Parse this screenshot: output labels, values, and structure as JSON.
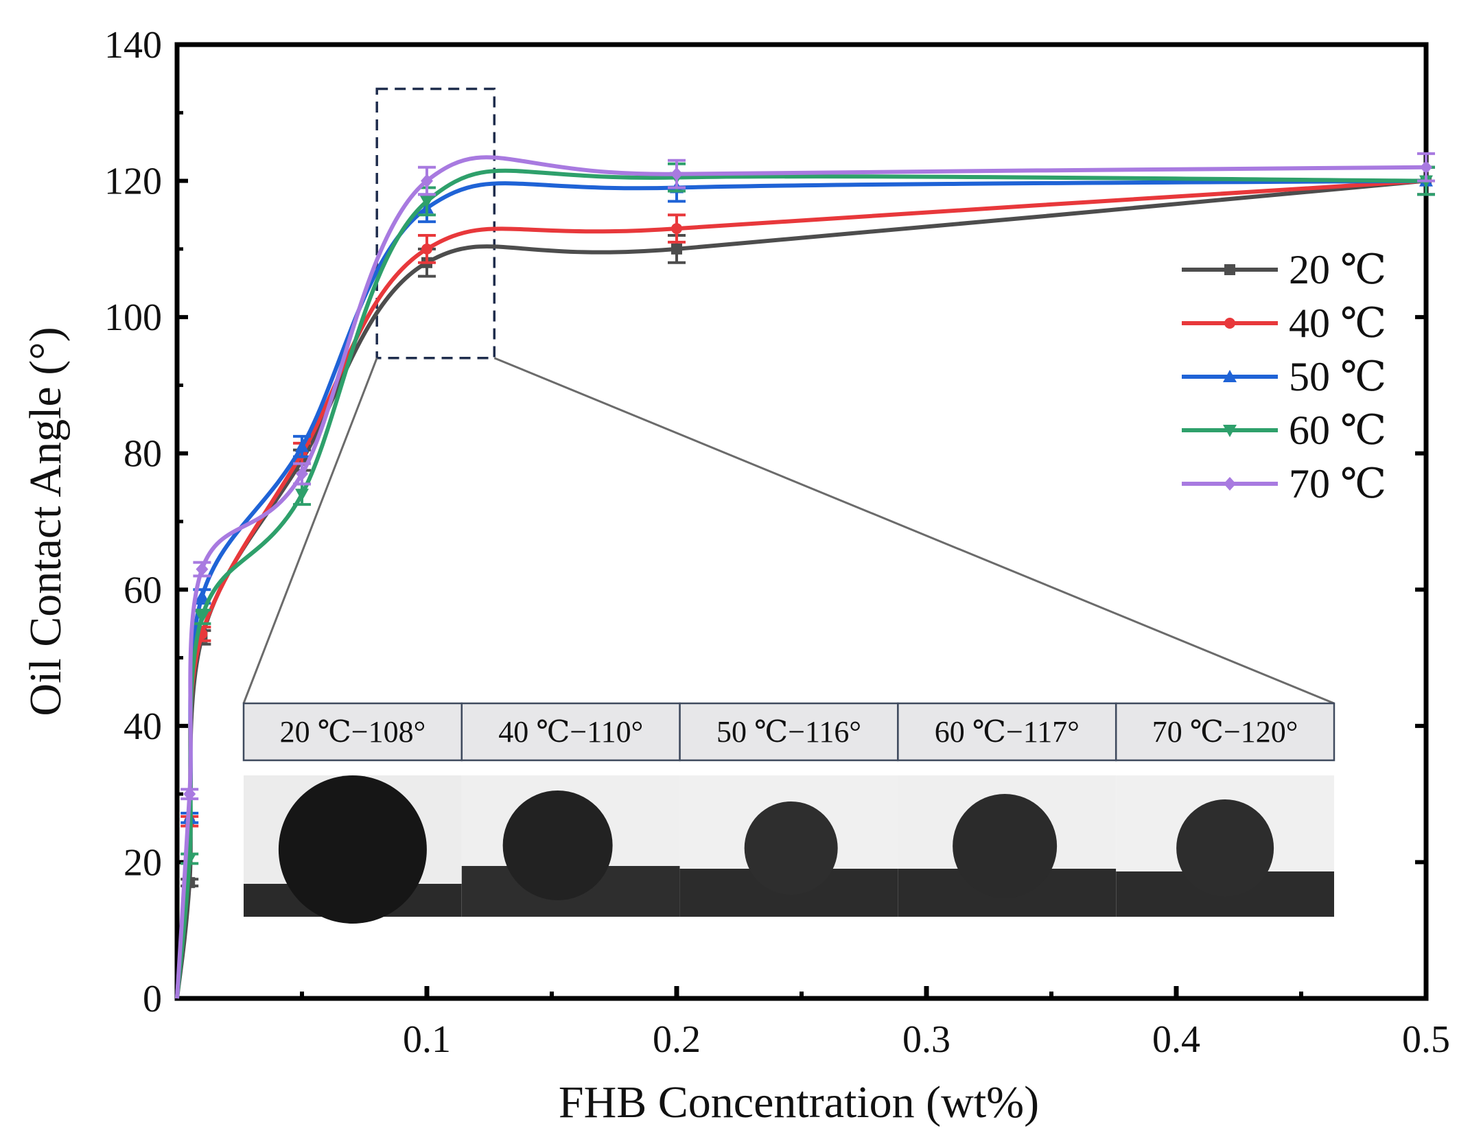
{
  "chart_data": {
    "type": "line",
    "title": "",
    "xlabel": "FHB Concentration (wt%)",
    "ylabel": "Oil Contact Angle (°)",
    "xlim": [
      0,
      0.5
    ],
    "ylim": [
      0,
      140
    ],
    "x_ticks": [
      0.1,
      0.2,
      0.3,
      0.4,
      0.5
    ],
    "x_tick_labels": [
      "0.1",
      "0.2",
      "0.3",
      "0.4",
      "0.5"
    ],
    "y_ticks": [
      0,
      20,
      40,
      60,
      80,
      100,
      120,
      140
    ],
    "y_tick_labels": [
      "0",
      "20",
      "40",
      "60",
      "80",
      "100",
      "120",
      "140"
    ],
    "grid": false,
    "legend_position": "right",
    "x": [
      0,
      0.005,
      0.01,
      0.05,
      0.1,
      0.2,
      0.5
    ],
    "series": [
      {
        "name": "20 ℃",
        "color": "#4d4d4d",
        "marker": "square",
        "values": [
          0,
          17,
          53,
          79,
          108,
          110,
          120
        ],
        "errors": [
          0,
          0.5,
          1.0,
          1.5,
          2.0,
          2.0,
          2.0
        ]
      },
      {
        "name": "40 ℃",
        "color": "#e8383b",
        "marker": "circle",
        "values": [
          0,
          26,
          53.5,
          80,
          110,
          113,
          120
        ],
        "errors": [
          0,
          0.7,
          1.0,
          1.5,
          2.0,
          2.0,
          2.0
        ]
      },
      {
        "name": "50 ℃",
        "color": "#1f63d6",
        "marker": "triangle-up",
        "values": [
          0,
          26.5,
          59,
          81,
          116,
          119,
          120
        ],
        "errors": [
          0,
          0.7,
          1.0,
          1.5,
          2.0,
          2.0,
          2.0
        ]
      },
      {
        "name": "60 ℃",
        "color": "#2ea06b",
        "marker": "triangle-down",
        "values": [
          0,
          20.5,
          56,
          74,
          117,
          120.5,
          120
        ],
        "errors": [
          0,
          0.7,
          1.0,
          1.5,
          2.0,
          2.0,
          2.0
        ]
      },
      {
        "name": "70 ℃",
        "color": "#a87ae0",
        "marker": "diamond",
        "values": [
          0,
          30,
          63,
          77,
          120,
          121,
          122
        ],
        "errors": [
          0,
          0.7,
          1.0,
          1.5,
          2.0,
          2.0,
          2.0
        ]
      }
    ],
    "zoom_box": {
      "x_range": [
        0.08,
        0.127
      ],
      "y_range": [
        94,
        133.5
      ]
    },
    "inset_labels": [
      "20 ℃−108°",
      "40 ℃−110°",
      "50 ℃−116°",
      "60 ℃−117°",
      "70 ℃−120°"
    ]
  }
}
